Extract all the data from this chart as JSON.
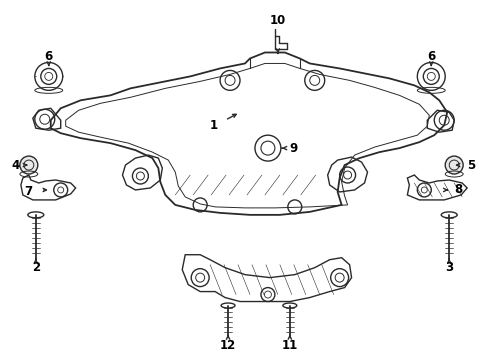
{
  "bg_color": "#ffffff",
  "line_color": "#2a2a2a",
  "text_color": "#000000",
  "figsize": [
    4.89,
    3.6
  ],
  "dpi": 100,
  "lw": 1.0,
  "font_size": 8.5
}
